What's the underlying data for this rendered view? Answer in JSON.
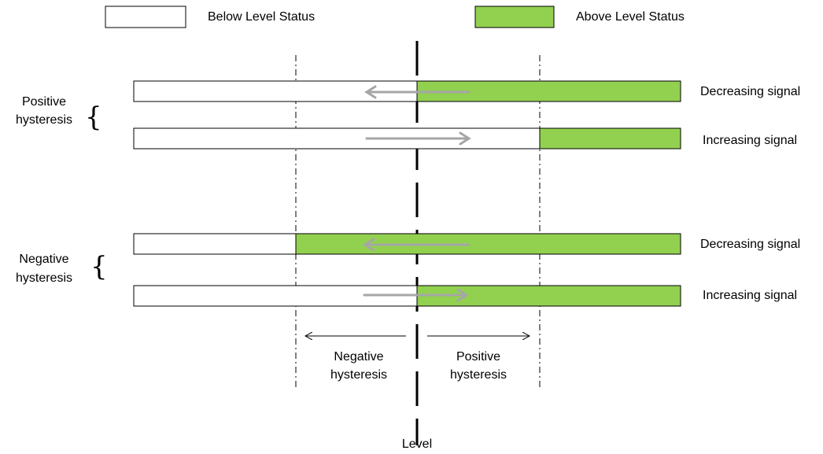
{
  "legend": {
    "below_label": "Below Level Status",
    "above_label": "Above Level Status",
    "above_color": "#92d050",
    "below_color": "#ffffff"
  },
  "groups": {
    "positive_label_line1": "Positive",
    "positive_label_line2": "hysteresis",
    "negative_label_line1": "Negative",
    "negative_label_line2": "hysteresis"
  },
  "rows": {
    "pos_decreasing": "Decreasing signal",
    "pos_increasing": "Increasing signal",
    "neg_decreasing": "Decreasing signal",
    "neg_increasing": "Increasing signal"
  },
  "bottom": {
    "negative_line1": "Negative",
    "negative_line2": "hysteresis",
    "positive_line1": "Positive",
    "positive_line2": "hysteresis",
    "level": "Level"
  },
  "colors": {
    "arrow": "#a6a6a6",
    "line": "#000000"
  }
}
